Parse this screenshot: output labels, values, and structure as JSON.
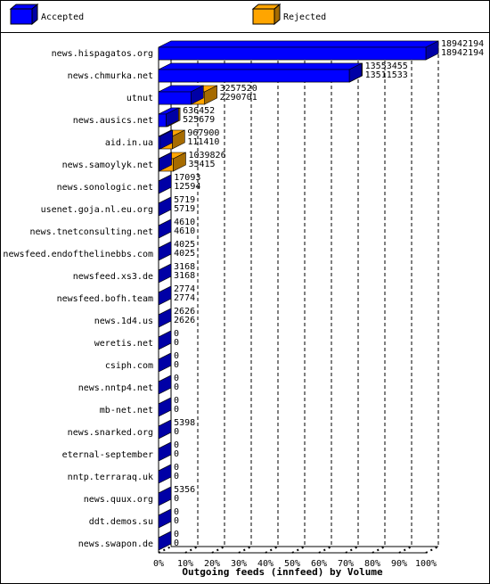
{
  "chart_data": {
    "type": "bar3d",
    "orientation": "horizontal",
    "title": "Outgoing feeds (innfeed) by Volume",
    "categories": [
      "news.hispagatos.org",
      "news.chmurka.net",
      "utnut",
      "news.ausics.net",
      "aid.in.ua",
      "news.samoylyk.net",
      "news.sonologic.net",
      "usenet.goja.nl.eu.org",
      "news.tnetconsulting.net",
      "newsfeed.endofthelinebbs.com",
      "newsfeed.xs3.de",
      "newsfeed.bofh.team",
      "news.1d4.us",
      "weretis.net",
      "csiph.com",
      "news.nntp4.net",
      "mb-net.net",
      "news.snarked.org",
      "eternal-september",
      "nntp.terraraq.uk",
      "news.quux.org",
      "ddt.demos.su",
      "news.swapon.de"
    ],
    "series": [
      {
        "name": "Accepted",
        "color": "#0000ff",
        "values": [
          18942194,
          13511533,
          2290701,
          525679,
          111410,
          35415,
          12594,
          5719,
          4610,
          4025,
          3168,
          2774,
          2626,
          0,
          0,
          0,
          0,
          0,
          0,
          0,
          0,
          0,
          0
        ]
      },
      {
        "name": "Rejected",
        "color": "#ffa500",
        "values": [
          18942194,
          13553455,
          3257520,
          636452,
          967900,
          1039826,
          17093,
          5719,
          4610,
          4025,
          3168,
          2774,
          2626,
          0,
          0,
          0,
          0,
          5398,
          0,
          0,
          5356,
          0,
          0
        ]
      }
    ],
    "xlim": [
      0,
      18942194
    ],
    "xticks": [
      {
        "value": 0,
        "label": "0%"
      },
      {
        "value": 1894219.4,
        "label": "10%"
      },
      {
        "value": 3788438.8,
        "label": "20%"
      },
      {
        "value": 5682658.2,
        "label": "30%"
      },
      {
        "value": 7576877.6,
        "label": "40%"
      },
      {
        "value": 9471097,
        "label": "50%"
      },
      {
        "value": 11365316.4,
        "label": "60%"
      },
      {
        "value": 13259535.8,
        "label": "70%"
      },
      {
        "value": 15153755.2,
        "label": "80%"
      },
      {
        "value": 17047974.6,
        "label": "90%"
      },
      {
        "value": 18942194,
        "label": "100%"
      }
    ],
    "grid": true
  }
}
